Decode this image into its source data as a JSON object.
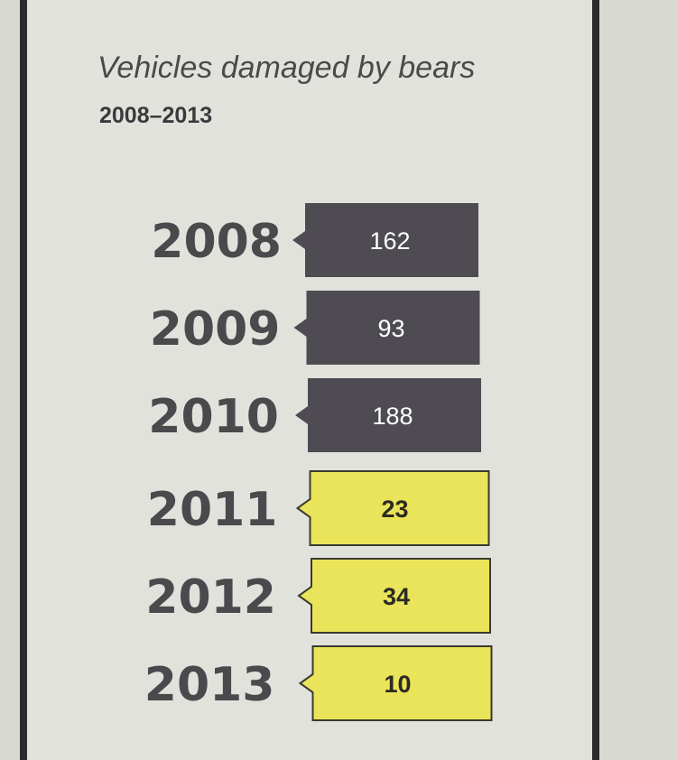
{
  "chart_data": {
    "type": "bar",
    "title": "Vehicles damaged by bears",
    "subtitle": "2008–2013",
    "categories": [
      "2008",
      "2009",
      "2010",
      "2011",
      "2012",
      "2013"
    ],
    "values": [
      162,
      93,
      188,
      23,
      34,
      10
    ],
    "value_labels": [
      "162",
      "93",
      "188",
      "23",
      "34",
      "10"
    ],
    "colors": {
      "dark_box": "#4f4b52",
      "dark_text": "#ffffff",
      "light_box": "#eae45a",
      "light_text": "#2b2a22"
    },
    "dark_group": [
      "2008",
      "2009",
      "2010"
    ],
    "light_group": [
      "2011",
      "2012",
      "2013"
    ]
  }
}
